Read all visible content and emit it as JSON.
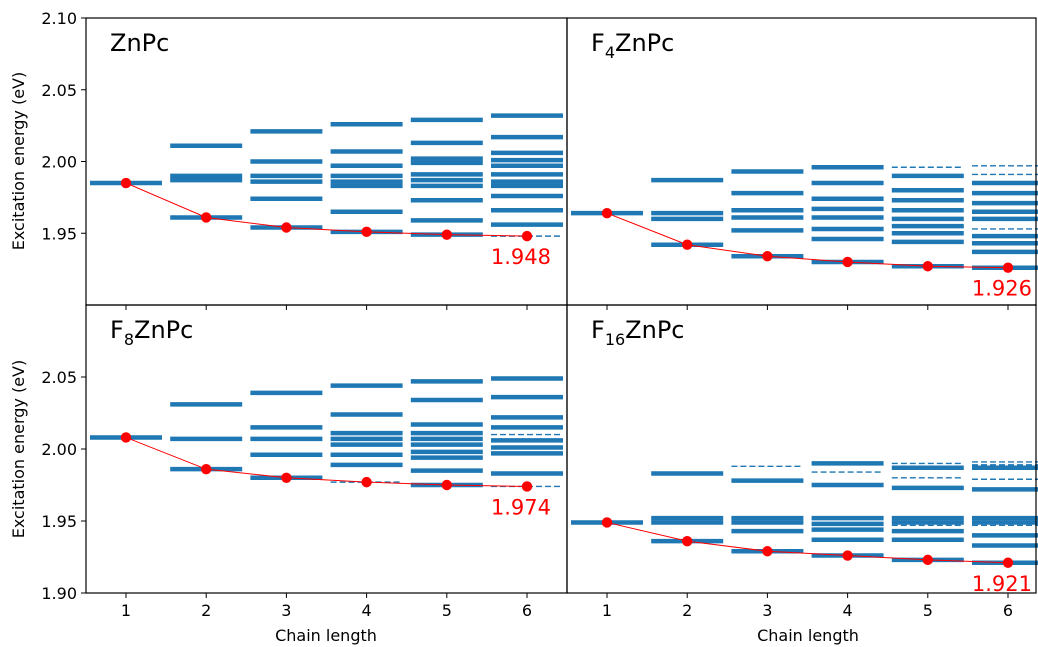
{
  "figure": {
    "xlabel": "Chain length",
    "ylabel": "Excitation energy (eV)",
    "x_ticks": [
      "1",
      "2",
      "3",
      "4",
      "5",
      "6"
    ],
    "colors": {
      "levels": "#1f77b4",
      "lowest": "#ff0000",
      "axis": "#000000"
    }
  },
  "chart_data": [
    {
      "type": "line",
      "panel": "top-left",
      "label_main": "ZnPc",
      "label_sub": "",
      "label_tail": "",
      "ylim": [
        1.9,
        2.1
      ],
      "y_ticks": [
        "1.95",
        "2.00",
        "2.05",
        "2.10"
      ],
      "x": [
        1,
        2,
        3,
        4,
        5,
        6
      ],
      "lowest": [
        1.985,
        1.961,
        1.954,
        1.951,
        1.949,
        1.948
      ],
      "annotation": "1.948",
      "levels": [
        [
          1.985
        ],
        [
          2.011,
          1.99,
          1.987,
          1.961
        ],
        [
          2.021,
          2.0,
          1.99,
          1.986,
          1.974,
          1.954
        ],
        [
          2.026,
          2.007,
          1.997,
          1.99,
          1.986,
          1.983,
          1.965,
          1.951
        ],
        [
          2.029,
          2.013,
          2.002,
          1.999,
          1.991,
          1.987,
          1.983,
          1.973,
          1.959,
          1.949
        ],
        [
          2.032,
          2.017,
          2.006,
          2.001,
          1.997,
          1.991,
          1.986,
          1.983,
          1.976,
          1.966,
          1.956
        ]
      ],
      "dashed": [
        [],
        [],
        [],
        [],
        [],
        [
          1.948
        ]
      ]
    },
    {
      "type": "line",
      "panel": "top-right",
      "label_main": "F",
      "label_sub": "4",
      "label_tail": "ZnPc",
      "ylim": [
        1.9,
        2.1
      ],
      "y_ticks": [],
      "x": [
        1,
        2,
        3,
        4,
        5,
        6
      ],
      "lowest": [
        1.964,
        1.942,
        1.934,
        1.93,
        1.927,
        1.926
      ],
      "annotation": "1.926",
      "levels": [
        [
          1.964
        ],
        [
          1.987,
          1.964,
          1.96,
          1.942
        ],
        [
          1.993,
          1.978,
          1.966,
          1.961,
          1.952,
          1.934
        ],
        [
          1.996,
          1.985,
          1.974,
          1.967,
          1.961,
          1.953,
          1.946,
          1.93
        ],
        [
          1.99,
          1.98,
          1.973,
          1.966,
          1.96,
          1.955,
          1.95,
          1.944,
          1.927
        ],
        [
          1.985,
          1.978,
          1.971,
          1.965,
          1.96,
          1.948,
          1.943,
          1.937,
          1.926
        ]
      ],
      "dashed": [
        [],
        [],
        [],
        [],
        [
          1.996
        ],
        [
          1.997,
          1.991,
          1.953
        ]
      ]
    },
    {
      "type": "line",
      "panel": "bottom-left",
      "label_main": "F",
      "label_sub": "8",
      "label_tail": "ZnPc",
      "ylim": [
        1.9,
        2.1
      ],
      "y_ticks": [
        "1.90",
        "1.95",
        "2.00",
        "2.05"
      ],
      "x": [
        1,
        2,
        3,
        4,
        5,
        6
      ],
      "lowest": [
        2.008,
        1.986,
        1.98,
        1.977,
        1.975,
        1.974
      ],
      "annotation": "1.974",
      "levels": [
        [
          2.008
        ],
        [
          2.031,
          2.007,
          1.986
        ],
        [
          2.039,
          2.015,
          2.007,
          1.996,
          1.98
        ],
        [
          2.044,
          2.024,
          2.011,
          2.007,
          2.003,
          1.996,
          1.989
        ],
        [
          2.047,
          2.034,
          2.017,
          2.011,
          2.007,
          2.003,
          1.998,
          1.994,
          1.985,
          1.975
        ],
        [
          2.049,
          2.036,
          2.022,
          2.015,
          2.006,
          2.001,
          1.997,
          1.983
        ]
      ],
      "dashed": [
        [],
        [],
        [],
        [
          1.977
        ],
        [],
        [
          2.01,
          1.974
        ]
      ]
    },
    {
      "type": "line",
      "panel": "bottom-right",
      "label_main": "F",
      "label_sub": "16",
      "label_tail": "ZnPc",
      "ylim": [
        1.9,
        2.1
      ],
      "y_ticks": [],
      "x": [
        1,
        2,
        3,
        4,
        5,
        6
      ],
      "lowest": [
        1.949,
        1.936,
        1.929,
        1.926,
        1.923,
        1.921
      ],
      "annotation": "1.921",
      "levels": [
        [
          1.949
        ],
        [
          1.983,
          1.952,
          1.949,
          1.936
        ],
        [
          1.978,
          1.952,
          1.949,
          1.943,
          1.929
        ],
        [
          1.99,
          1.975,
          1.952,
          1.948,
          1.944,
          1.937,
          1.926
        ],
        [
          1.987,
          1.973,
          1.952,
          1.949,
          1.943,
          1.937,
          1.923
        ],
        [
          1.987,
          1.972,
          1.952,
          1.949,
          1.94,
          1.933,
          1.921
        ]
      ],
      "dashed": [
        [],
        [],
        [
          1.988
        ],
        [
          1.984
        ],
        [
          1.99,
          1.98,
          1.947
        ],
        [
          1.991,
          1.989,
          1.979,
          1.947
        ]
      ]
    }
  ]
}
